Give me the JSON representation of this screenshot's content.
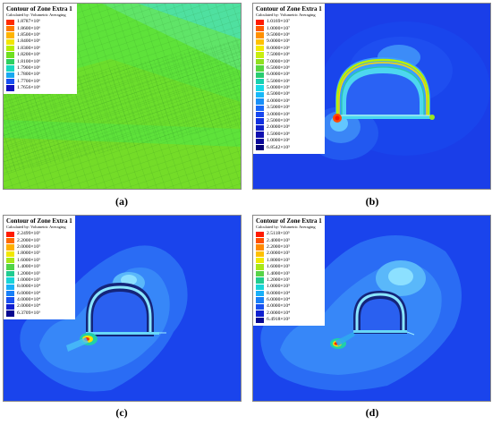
{
  "panels": [
    {
      "id": "a",
      "caption": "(a)",
      "legend": {
        "title": "Contour of Zone Extra 1",
        "subtitle": "Calculated by: Volumetric Averaging",
        "entries": [
          {
            "value": "1.8787×10⁶",
            "color": "#ff2a00"
          },
          {
            "value": "1.8600×10⁶",
            "color": "#ff7a00"
          },
          {
            "value": "1.8500×10⁶",
            "color": "#ffb400"
          },
          {
            "value": "1.8400×10⁶",
            "color": "#f2e600"
          },
          {
            "value": "1.8300×10⁶",
            "color": "#b8ee00"
          },
          {
            "value": "1.8200×10⁶",
            "color": "#6fe020"
          },
          {
            "value": "1.8100×10⁶",
            "color": "#2ed060"
          },
          {
            "value": "1.7900×10⁶",
            "color": "#19d8c0"
          },
          {
            "value": "1.7800×10⁶",
            "color": "#18a8f0"
          },
          {
            "value": "1.7700×10⁶",
            "color": "#1850f0"
          },
          {
            "value": "1.7656×10⁶",
            "color": "#1010c0"
          }
        ]
      }
    },
    {
      "id": "b",
      "caption": "(b)",
      "legend": {
        "title": "Contour of Zone Extra 1",
        "subtitle": "Calculated by: Volumetric Averaging",
        "entries": [
          {
            "value": "1.0169×10⁷",
            "color": "#ff1a00"
          },
          {
            "value": "1.0000×10⁷",
            "color": "#ff5a00"
          },
          {
            "value": "9.5000×10⁶",
            "color": "#ff9000"
          },
          {
            "value": "9.0000×10⁶",
            "color": "#ffc200"
          },
          {
            "value": "8.0000×10⁶",
            "color": "#f4ea00"
          },
          {
            "value": "7.5000×10⁶",
            "color": "#c8ee10"
          },
          {
            "value": "7.0000×10⁶",
            "color": "#90e020"
          },
          {
            "value": "6.5000×10⁶",
            "color": "#56d640"
          },
          {
            "value": "6.0000×10⁶",
            "color": "#28cc70"
          },
          {
            "value": "5.5000×10⁶",
            "color": "#18d0b0"
          },
          {
            "value": "5.0000×10⁶",
            "color": "#18d8e8"
          },
          {
            "value": "4.5000×10⁶",
            "color": "#18b8f8"
          },
          {
            "value": "4.0000×10⁶",
            "color": "#1890f8"
          },
          {
            "value": "3.5000×10⁶",
            "color": "#1868f8"
          },
          {
            "value": "3.0000×10⁶",
            "color": "#1848f0"
          },
          {
            "value": "2.5000×10⁶",
            "color": "#1030e0"
          },
          {
            "value": "2.0000×10⁶",
            "color": "#1020c8"
          },
          {
            "value": "1.5000×10⁶",
            "color": "#1010b0"
          },
          {
            "value": "1.0000×10⁶",
            "color": "#0a0898"
          },
          {
            "value": "6.8542×10⁵",
            "color": "#060478"
          }
        ]
      }
    },
    {
      "id": "c",
      "caption": "(c)",
      "legend": {
        "title": "Contour of Zone Extra 1",
        "subtitle": "Calculated by: Volumetric Averaging",
        "entries": [
          {
            "value": "2.2499×10⁵",
            "color": "#ff1a00"
          },
          {
            "value": "2.2000×10⁵",
            "color": "#ff6a00"
          },
          {
            "value": "2.0000×10⁵",
            "color": "#ffb000"
          },
          {
            "value": "1.8000×10⁵",
            "color": "#f2e800"
          },
          {
            "value": "1.6000×10⁵",
            "color": "#a8e818"
          },
          {
            "value": "1.4000×10⁵",
            "color": "#50d448"
          },
          {
            "value": "1.2000×10⁵",
            "color": "#20cc90"
          },
          {
            "value": "1.0000×10⁵",
            "color": "#18d4d8"
          },
          {
            "value": "8.0000×10⁴",
            "color": "#18b0f8"
          },
          {
            "value": "6.0000×10⁴",
            "color": "#1880f8"
          },
          {
            "value": "4.0000×10⁴",
            "color": "#1850f0"
          },
          {
            "value": "2.0000×10⁴",
            "color": "#1020d0"
          },
          {
            "value": "6.3709×10³",
            "color": "#080890"
          }
        ]
      }
    },
    {
      "id": "d",
      "caption": "(d)",
      "legend": {
        "title": "Contour of Zone Extra 1",
        "subtitle": "Calculated by: Volumetric Averaging",
        "entries": [
          {
            "value": "2.5118×10⁵",
            "color": "#ff1a00"
          },
          {
            "value": "2.4000×10⁵",
            "color": "#ff5000"
          },
          {
            "value": "2.2000×10⁵",
            "color": "#ff8a00"
          },
          {
            "value": "2.0000×10⁵",
            "color": "#ffc000"
          },
          {
            "value": "1.8000×10⁵",
            "color": "#f0ea00"
          },
          {
            "value": "1.6000×10⁵",
            "color": "#a8e818"
          },
          {
            "value": "1.4000×10⁵",
            "color": "#58d448"
          },
          {
            "value": "1.2000×10⁵",
            "color": "#20cc90"
          },
          {
            "value": "1.0000×10⁵",
            "color": "#18d4d8"
          },
          {
            "value": "8.0000×10⁴",
            "color": "#18b0f8"
          },
          {
            "value": "6.0000×10⁴",
            "color": "#1880f8"
          },
          {
            "value": "4.0000×10⁴",
            "color": "#1850f0"
          },
          {
            "value": "2.0000×10⁴",
            "color": "#1020d0"
          },
          {
            "value": "6.4918×10³",
            "color": "#080890"
          }
        ]
      }
    }
  ]
}
